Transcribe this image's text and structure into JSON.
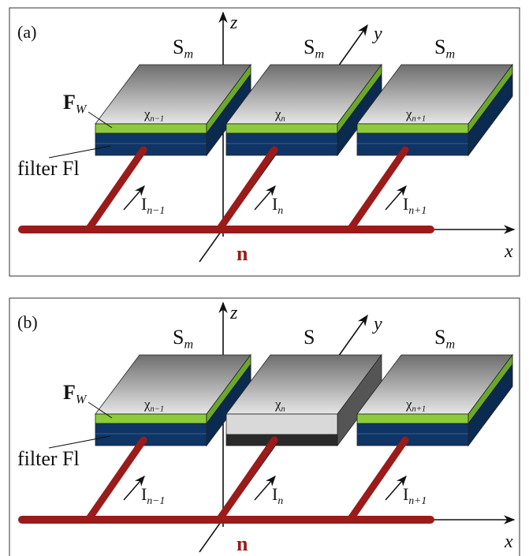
{
  "panels": [
    {
      "label": "(a)",
      "axes": {
        "x": "x",
        "y": "y",
        "z": "z"
      },
      "node": "n",
      "fw": {
        "base": "F",
        "sub": "W"
      },
      "filter": "filter Fl",
      "cells": [
        {
          "name": {
            "base": "S",
            "sub": "m"
          },
          "chi": {
            "base": "χ",
            "sub": "n−1"
          },
          "current": {
            "base": "I",
            "sub": "n−1"
          }
        },
        {
          "name": {
            "base": "S",
            "sub": "m"
          },
          "chi": {
            "base": "χ",
            "sub": "n"
          },
          "current": {
            "base": "I",
            "sub": "n"
          }
        },
        {
          "name": {
            "base": "S",
            "sub": "m"
          },
          "chi": {
            "base": "χ",
            "sub": "n+1"
          },
          "current": {
            "base": "I",
            "sub": "n+1"
          }
        }
      ]
    },
    {
      "label": "(b)",
      "axes": {
        "x": "x",
        "y": "y",
        "z": "z"
      },
      "node": "n",
      "fw": {
        "base": "F",
        "sub": "W"
      },
      "filter": "filter Fl",
      "cells": [
        {
          "name": {
            "base": "S",
            "sub": "m"
          },
          "chi": {
            "base": "χ",
            "sub": "n−1"
          },
          "current": {
            "base": "I",
            "sub": "n−1"
          }
        },
        {
          "name": {
            "base": "S"
          },
          "chi": {
            "base": "χ",
            "sub": "n"
          },
          "current": {
            "base": "I",
            "sub": "n"
          }
        },
        {
          "name": {
            "base": "S",
            "sub": "m"
          },
          "chi": {
            "base": "χ",
            "sub": "n+1"
          },
          "current": {
            "base": "I",
            "sub": "n+1"
          }
        }
      ]
    }
  ]
}
